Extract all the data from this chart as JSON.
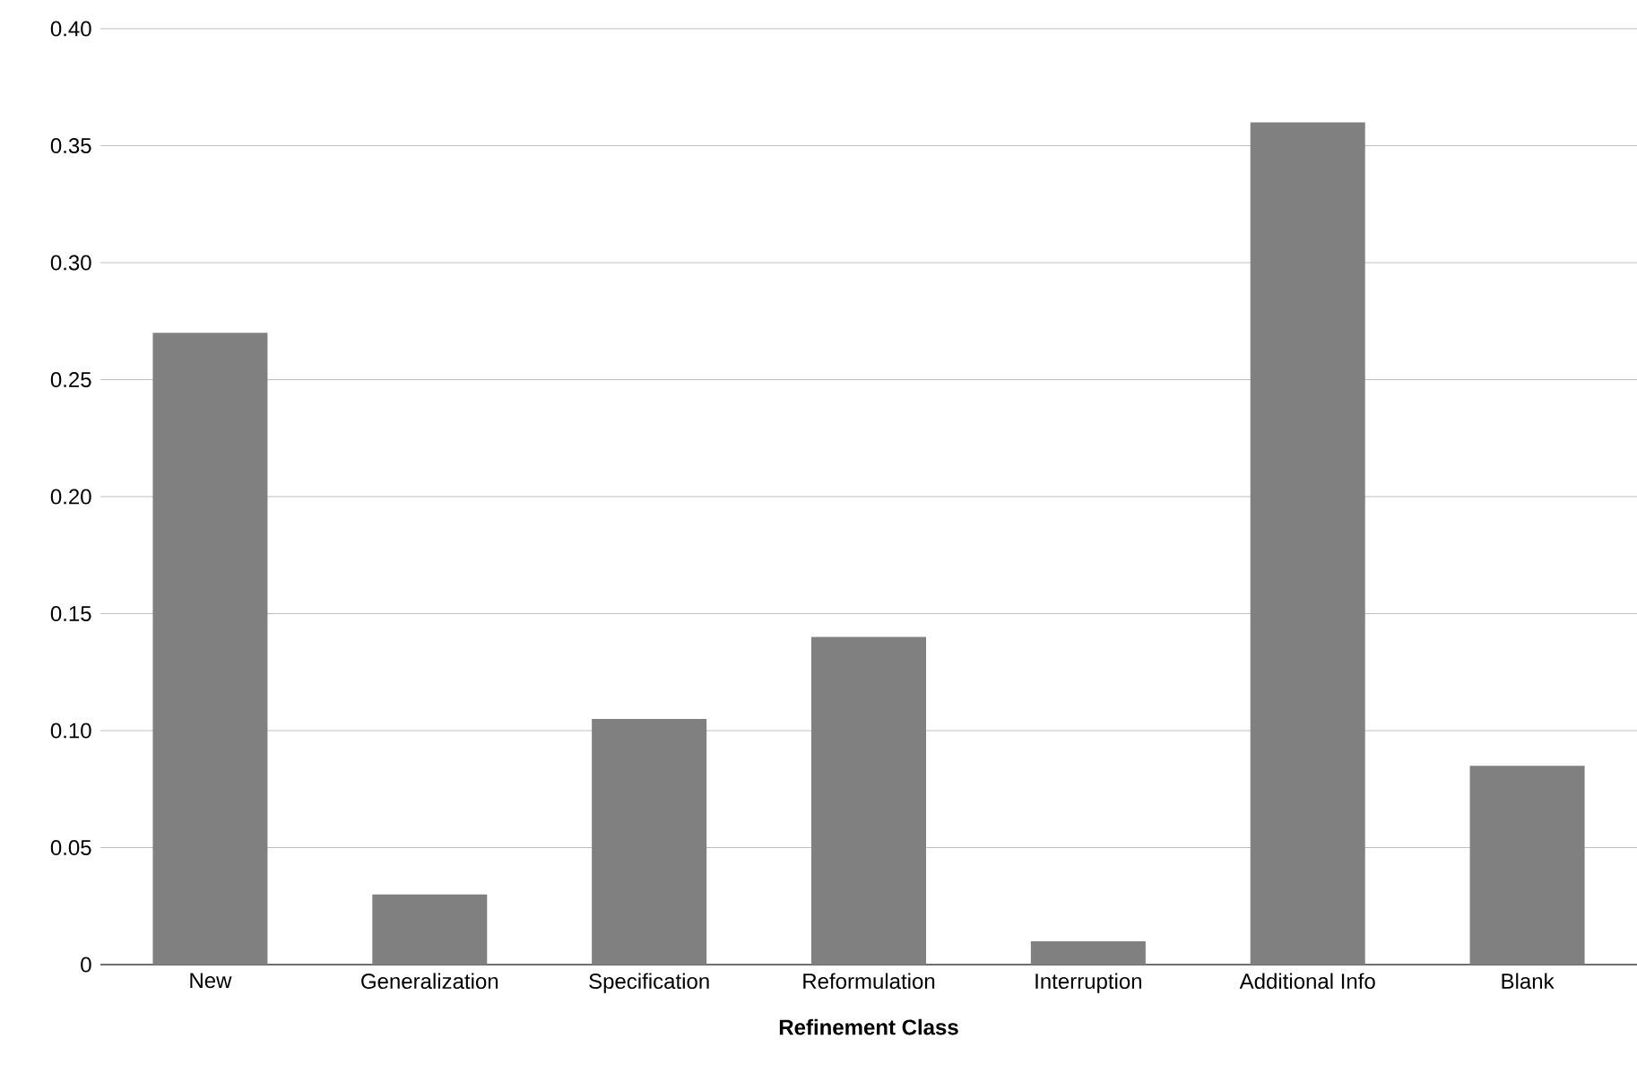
{
  "chart_data": {
    "type": "bar",
    "xlabel": "Refinement Class",
    "categories": [
      "New",
      "Generalization",
      "Specification",
      "Reformulation",
      "Interruption",
      "Additional Info",
      "Blank"
    ],
    "values": [
      0.27,
      0.03,
      0.105,
      0.14,
      0.01,
      0.36,
      0.085
    ],
    "color": "#808080",
    "ylim": [
      0,
      0.4
    ],
    "yticks": [
      0,
      0.05,
      {
        "value": 0.1,
        "label": "0.10"
      },
      0.15,
      {
        "value": 0.2,
        "label": "0.20"
      },
      0.25,
      {
        "value": 0.3,
        "label": "0.30"
      },
      0.35,
      {
        "value": 0.4,
        "label": "0.40"
      }
    ],
    "grid": "y"
  }
}
